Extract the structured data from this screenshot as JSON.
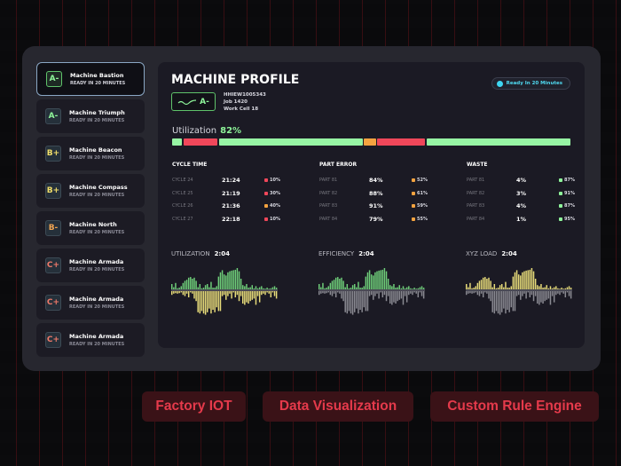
{
  "sidebar": {
    "items": [
      {
        "name": "Machine Bastion",
        "status": "READY IN 20 MINUTES",
        "grade": "A-",
        "color": "#8ef59a",
        "selected": true
      },
      {
        "name": "Machine Triumph",
        "status": "READY IN 20 MINUTES",
        "grade": "A-",
        "color": "#8ef59a"
      },
      {
        "name": "Machine Beacon",
        "status": "READY IN 20 MINUTES",
        "grade": "B+",
        "color": "#f2df6a"
      },
      {
        "name": "Machine Compass",
        "status": "READY IN 20 MINUTES",
        "grade": "B+",
        "color": "#f2df6a"
      },
      {
        "name": "Machine North",
        "status": "READY IN 20 MINUTES",
        "grade": "B-",
        "color": "#f0a552"
      },
      {
        "name": "Machine Armada",
        "status": "READY IN 20 MINUTES",
        "grade": "C+",
        "color": "#f07a6a"
      },
      {
        "name": "Machine Armada",
        "status": "READY IN 20 MINUTES",
        "grade": "C+",
        "color": "#f07a6a"
      },
      {
        "name": "Machine Armada",
        "status": "READY IN 20 MINUTES",
        "grade": "C+",
        "color": "#f07a6a"
      }
    ]
  },
  "profile": {
    "title": "MACHINE PROFILE",
    "grade": "A-",
    "id": "HHIEW1005343",
    "job": "Job 1420",
    "cell": "Work Cell 18",
    "ready": "Ready In 20 Minutes",
    "util_label": "Utilization",
    "util_value": "82%",
    "segments": [
      {
        "w": 2.5,
        "c": "#97f5a4"
      },
      {
        "w": 8.5,
        "c": "#f0475a"
      },
      {
        "w": 36,
        "c": "#97f5a4"
      },
      {
        "w": 3,
        "c": "#f5a340"
      },
      {
        "w": 12,
        "c": "#f0475a"
      },
      {
        "w": 36,
        "c": "#97f5a4"
      }
    ]
  },
  "stats": [
    {
      "title": "CYCLE TIME",
      "rows": [
        {
          "label": "CYCLE 24",
          "value": "21:24",
          "pct": "10%",
          "color": "#f0475a"
        },
        {
          "label": "CYCLE 25",
          "value": "21:19",
          "pct": "30%",
          "color": "#f0475a"
        },
        {
          "label": "CYCLE 26",
          "value": "21:36",
          "pct": "40%",
          "color": "#f5a340"
        },
        {
          "label": "CYCLE 27",
          "value": "22:18",
          "pct": "10%",
          "color": "#f0475a"
        }
      ]
    },
    {
      "title": "PART ERROR",
      "rows": [
        {
          "label": "PART 81",
          "value": "84%",
          "pct": "52%",
          "color": "#f5a340"
        },
        {
          "label": "PART 82",
          "value": "88%",
          "pct": "61%",
          "color": "#f5a340"
        },
        {
          "label": "PART 83",
          "value": "91%",
          "pct": "59%",
          "color": "#f5a340"
        },
        {
          "label": "PART 84",
          "value": "79%",
          "pct": "55%",
          "color": "#f5a340"
        }
      ]
    },
    {
      "title": "WASTE",
      "rows": [
        {
          "label": "PART 81",
          "value": "4%",
          "pct": "87%",
          "color": "#8ef59a"
        },
        {
          "label": "PART 82",
          "value": "3%",
          "pct": "91%",
          "color": "#8ef59a"
        },
        {
          "label": "PART 83",
          "value": "4%",
          "pct": "87%",
          "color": "#8ef59a"
        },
        {
          "label": "PART 84",
          "value": "1%",
          "pct": "95%",
          "color": "#8ef59a"
        }
      ]
    }
  ],
  "charts": [
    {
      "label": "UTILIZATION",
      "time": "2:04",
      "up_color": "#6fcf7a",
      "down_color": "#e8dc7a"
    },
    {
      "label": "EFFICIENCY",
      "time": "2:04",
      "up_color": "#6fcf7a",
      "down_color": "#8a8a92"
    },
    {
      "label": "XYZ LOAD",
      "time": "2:04",
      "up_color": "#e8dc7a",
      "down_color": "#8a8a92"
    }
  ],
  "spark": {
    "up": [
      25,
      10,
      30,
      5,
      8,
      15,
      30,
      40,
      45,
      55,
      58,
      50,
      55,
      40,
      10,
      25,
      5,
      8,
      20,
      25,
      10,
      35,
      8,
      8,
      15,
      60,
      80,
      90,
      70,
      65,
      80,
      85,
      88,
      90,
      92,
      100,
      85,
      50,
      20,
      15,
      25,
      8,
      10,
      20,
      5,
      15,
      5,
      10,
      15,
      5,
      3,
      8,
      3,
      5,
      10,
      15,
      8
    ],
    "down": [
      15,
      10,
      8,
      10,
      8,
      5,
      15,
      20,
      10,
      25,
      5,
      10,
      30,
      40,
      85,
      90,
      80,
      90,
      95,
      85,
      70,
      90,
      75,
      85,
      65,
      80,
      80,
      20,
      15,
      35,
      20,
      10,
      30,
      5,
      25,
      15,
      40,
      20,
      50,
      55,
      45,
      50,
      40,
      35,
      30,
      55,
      20,
      45,
      15,
      10,
      15,
      5,
      10,
      25,
      5,
      20,
      30
    ]
  },
  "tags": [
    "Factory IOT",
    "Data Visualization",
    "Custom Rule Engine"
  ]
}
